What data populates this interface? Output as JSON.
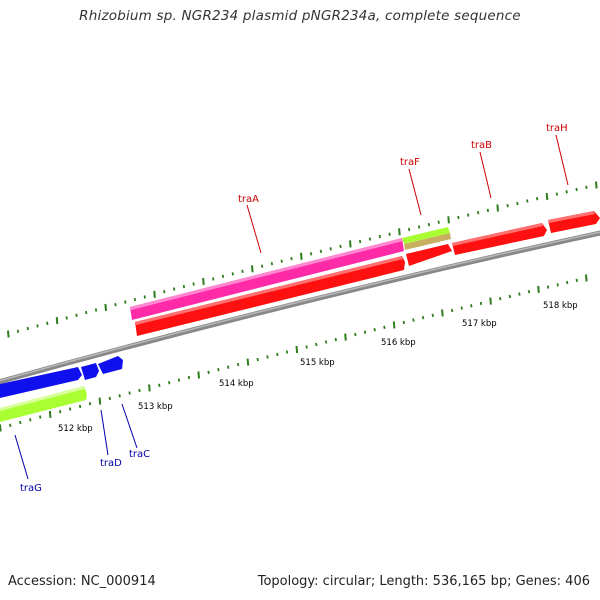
{
  "title": "Rhizobium sp. NGR234 plasmid pNGR234a, complete sequence",
  "footer": {
    "accession": "Accession: NC_000914",
    "summary": "Topology: circular; Length: 536,165 bp; Genes: 406"
  },
  "colors": {
    "backbone": "#8a8a8a",
    "tick": "#2e7d1e",
    "forward_label": "#cc0000",
    "reverse_label": "#0000aa",
    "forward_red": "#ff1010",
    "pink": "#ff2aa8",
    "lime": "#aaff33",
    "tan": "#c8b060",
    "blue": "#1010ee"
  },
  "axis": {
    "unit": "kbp",
    "ticks": [
      {
        "kbp": 512,
        "label": "512 kbp"
      },
      {
        "kbp": 513,
        "label": "513 kbp"
      },
      {
        "kbp": 514,
        "label": "514 kbp"
      },
      {
        "kbp": 515,
        "label": "515 kbp"
      },
      {
        "kbp": 516,
        "label": "516 kbp"
      },
      {
        "kbp": 517,
        "label": "517 kbp"
      },
      {
        "kbp": 518,
        "label": "518 kbp"
      }
    ]
  },
  "genes": [
    {
      "name": "traA",
      "strand": "forward"
    },
    {
      "name": "traF",
      "strand": "forward"
    },
    {
      "name": "traB",
      "strand": "forward"
    },
    {
      "name": "traH",
      "strand": "forward"
    },
    {
      "name": "traG",
      "strand": "reverse"
    },
    {
      "name": "traD",
      "strand": "reverse"
    },
    {
      "name": "traC",
      "strand": "reverse"
    }
  ]
}
